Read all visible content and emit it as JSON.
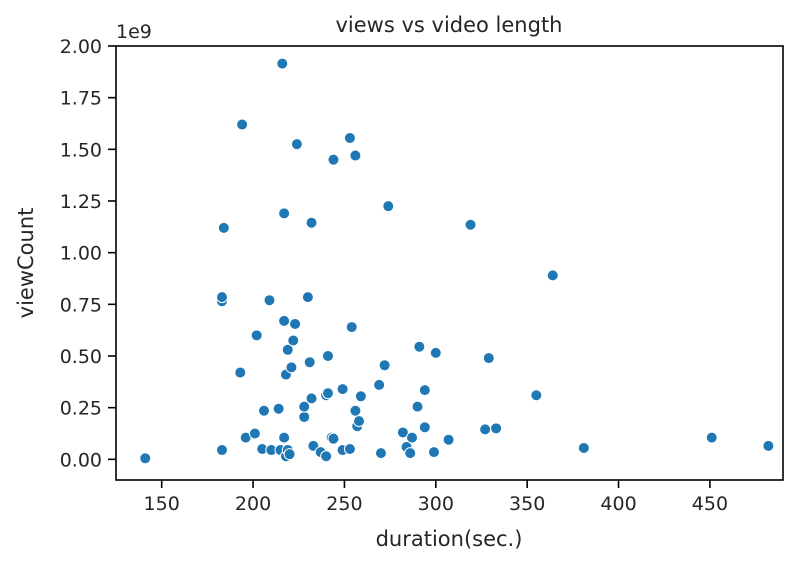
{
  "chart_data": {
    "type": "scatter",
    "title": "views vs video length",
    "xlabel": "duration(sec.)",
    "ylabel": "viewCount",
    "y_offset_label": "1e9",
    "xlim": [
      125,
      490
    ],
    "ylim": [
      -0.1,
      2.0
    ],
    "xticks": [
      150,
      200,
      250,
      300,
      350,
      400,
      450
    ],
    "xtick_labels": [
      "150",
      "200",
      "250",
      "300",
      "350",
      "400",
      "450"
    ],
    "yticks": [
      0.0,
      0.25,
      0.5,
      0.75,
      1.0,
      1.25,
      1.5,
      1.75,
      2.0
    ],
    "ytick_labels": [
      "0.00",
      "0.25",
      "0.50",
      "0.75",
      "1.00",
      "1.25",
      "1.50",
      "1.75",
      "2.00"
    ],
    "grid": false,
    "marker_color": "#1f77b4",
    "points": [
      [
        141,
        0.005
      ],
      [
        183,
        0.045
      ],
      [
        183,
        0.765
      ],
      [
        183,
        0.785
      ],
      [
        184,
        1.12
      ],
      [
        193,
        0.42
      ],
      [
        194,
        1.62
      ],
      [
        196,
        0.105
      ],
      [
        201,
        0.125
      ],
      [
        202,
        0.6
      ],
      [
        205,
        0.05
      ],
      [
        206,
        0.235
      ],
      [
        209,
        0.77
      ],
      [
        210,
        0.045
      ],
      [
        214,
        0.245
      ],
      [
        215,
        0.045
      ],
      [
        216,
        1.915
      ],
      [
        217,
        1.19
      ],
      [
        217,
        0.105
      ],
      [
        217,
        0.67
      ],
      [
        218,
        0.015
      ],
      [
        218,
        0.41
      ],
      [
        219,
        0.53
      ],
      [
        219,
        0.045
      ],
      [
        220,
        0.025
      ],
      [
        221,
        0.445
      ],
      [
        222,
        0.575
      ],
      [
        223,
        0.655
      ],
      [
        224,
        1.525
      ],
      [
        228,
        0.205
      ],
      [
        228,
        0.255
      ],
      [
        230,
        0.785
      ],
      [
        231,
        0.47
      ],
      [
        232,
        1.145
      ],
      [
        232,
        0.295
      ],
      [
        233,
        0.065
      ],
      [
        237,
        0.035
      ],
      [
        240,
        0.015
      ],
      [
        240,
        0.31
      ],
      [
        241,
        0.5
      ],
      [
        241,
        0.32
      ],
      [
        243,
        0.105
      ],
      [
        244,
        1.45
      ],
      [
        244,
        0.1
      ],
      [
        249,
        0.34
      ],
      [
        249,
        0.045
      ],
      [
        253,
        1.555
      ],
      [
        253,
        0.05
      ],
      [
        254,
        0.64
      ],
      [
        256,
        1.47
      ],
      [
        256,
        0.235
      ],
      [
        257,
        0.16
      ],
      [
        258,
        0.185
      ],
      [
        259,
        0.305
      ],
      [
        269,
        0.36
      ],
      [
        270,
        0.03
      ],
      [
        272,
        0.455
      ],
      [
        274,
        1.225
      ],
      [
        282,
        0.13
      ],
      [
        284,
        0.06
      ],
      [
        286,
        0.03
      ],
      [
        287,
        0.105
      ],
      [
        290,
        0.255
      ],
      [
        291,
        0.545
      ],
      [
        294,
        0.335
      ],
      [
        294,
        0.155
      ],
      [
        299,
        0.035
      ],
      [
        300,
        0.515
      ],
      [
        307,
        0.095
      ],
      [
        319,
        1.135
      ],
      [
        327,
        0.145
      ],
      [
        329,
        0.49
      ],
      [
        333,
        0.15
      ],
      [
        355,
        0.31
      ],
      [
        364,
        0.89
      ],
      [
        381,
        0.055
      ],
      [
        451,
        0.105
      ],
      [
        482,
        0.065
      ]
    ]
  }
}
